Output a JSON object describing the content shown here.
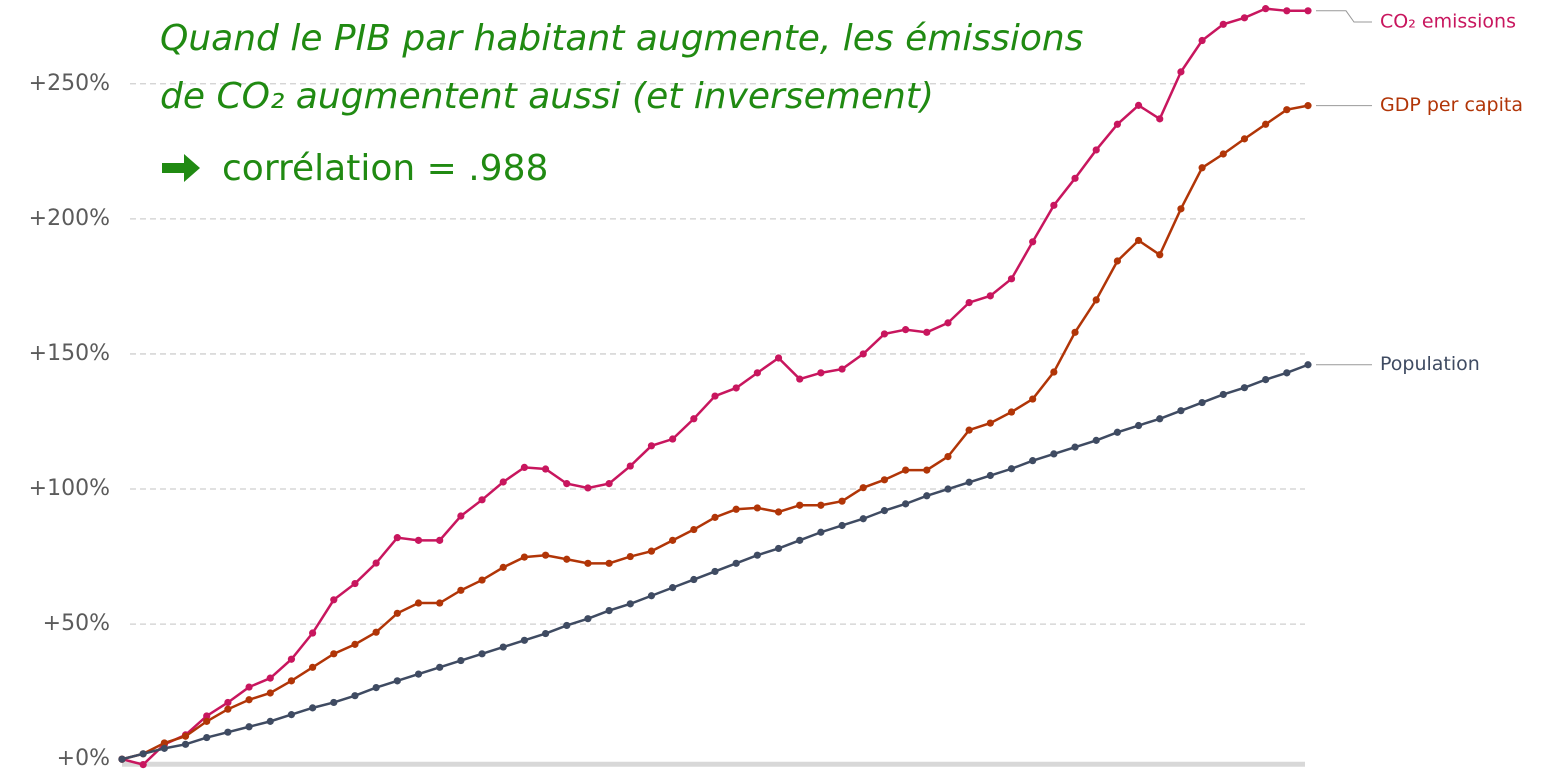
{
  "chart_data": {
    "type": "line",
    "annotation": [
      "Quand le PIB par habitant augmente, les émissions",
      "de CO₂ augmentent aussi (et inversement)",
      "corrélation = .988"
    ],
    "ylim": [
      -4,
      281
    ],
    "yticks": [
      {
        "value": 0,
        "label": "+0%"
      },
      {
        "value": 50,
        "label": "+50%"
      },
      {
        "value": 100,
        "label": "+100%"
      },
      {
        "value": 150,
        "label": "+150%"
      },
      {
        "value": 200,
        "label": "+200%"
      },
      {
        "value": 250,
        "label": "+250%"
      }
    ],
    "grid": true,
    "series": [
      {
        "name": "CO₂ emissions",
        "color": "#c8165e",
        "values": [
          0,
          -2,
          5.5,
          9,
          16,
          21,
          26.7,
          30,
          37,
          46.7,
          59,
          65,
          72.6,
          82,
          81,
          81,
          90,
          96,
          102.6,
          108,
          107.4,
          102,
          100.4,
          102,
          108.5,
          116,
          118.5,
          126,
          134.4,
          137.4,
          143,
          148.5,
          140.7,
          143,
          144.4,
          150,
          157.4,
          159,
          158,
          161.5,
          169,
          171.5,
          177.8,
          191.5,
          205,
          215,
          225.5,
          235,
          242,
          237,
          254.4,
          266,
          272,
          274.4,
          277.8,
          277,
          277
        ]
      },
      {
        "name": "GDP per capita",
        "color": "#b13507",
        "values": [
          0,
          2,
          6,
          8.5,
          14,
          18.5,
          22,
          24.5,
          29,
          34,
          39,
          42.5,
          47,
          54,
          57.8,
          57.8,
          62.5,
          66.3,
          71,
          74.8,
          75.5,
          74,
          72.5,
          72.5,
          75,
          77,
          81,
          85,
          89.5,
          92.5,
          93,
          91.5,
          94,
          94,
          95.5,
          100.5,
          103.4,
          107,
          107,
          112,
          121.8,
          124.4,
          128.5,
          133.3,
          143.3,
          158,
          170,
          184.4,
          192,
          186.7,
          203.7,
          218.9,
          224,
          229.6,
          235,
          240.4,
          241.9
        ]
      },
      {
        "name": "Population",
        "color": "#3f4b62",
        "values": [
          0,
          2,
          4,
          5.5,
          8,
          10,
          12,
          14,
          16.5,
          19,
          21,
          23.5,
          26.5,
          29,
          31.5,
          34,
          36.5,
          39,
          41.5,
          44,
          46.5,
          49.5,
          52,
          55,
          57.5,
          60.5,
          63.5,
          66.5,
          69.5,
          72.5,
          75.5,
          78,
          81,
          84,
          86.5,
          89,
          92,
          94.5,
          97.5,
          100,
          102.5,
          105,
          107.5,
          110.5,
          113,
          115.5,
          118,
          121,
          123.5,
          126,
          129,
          132,
          135,
          137.5,
          140.5,
          143,
          146
        ]
      }
    ]
  }
}
